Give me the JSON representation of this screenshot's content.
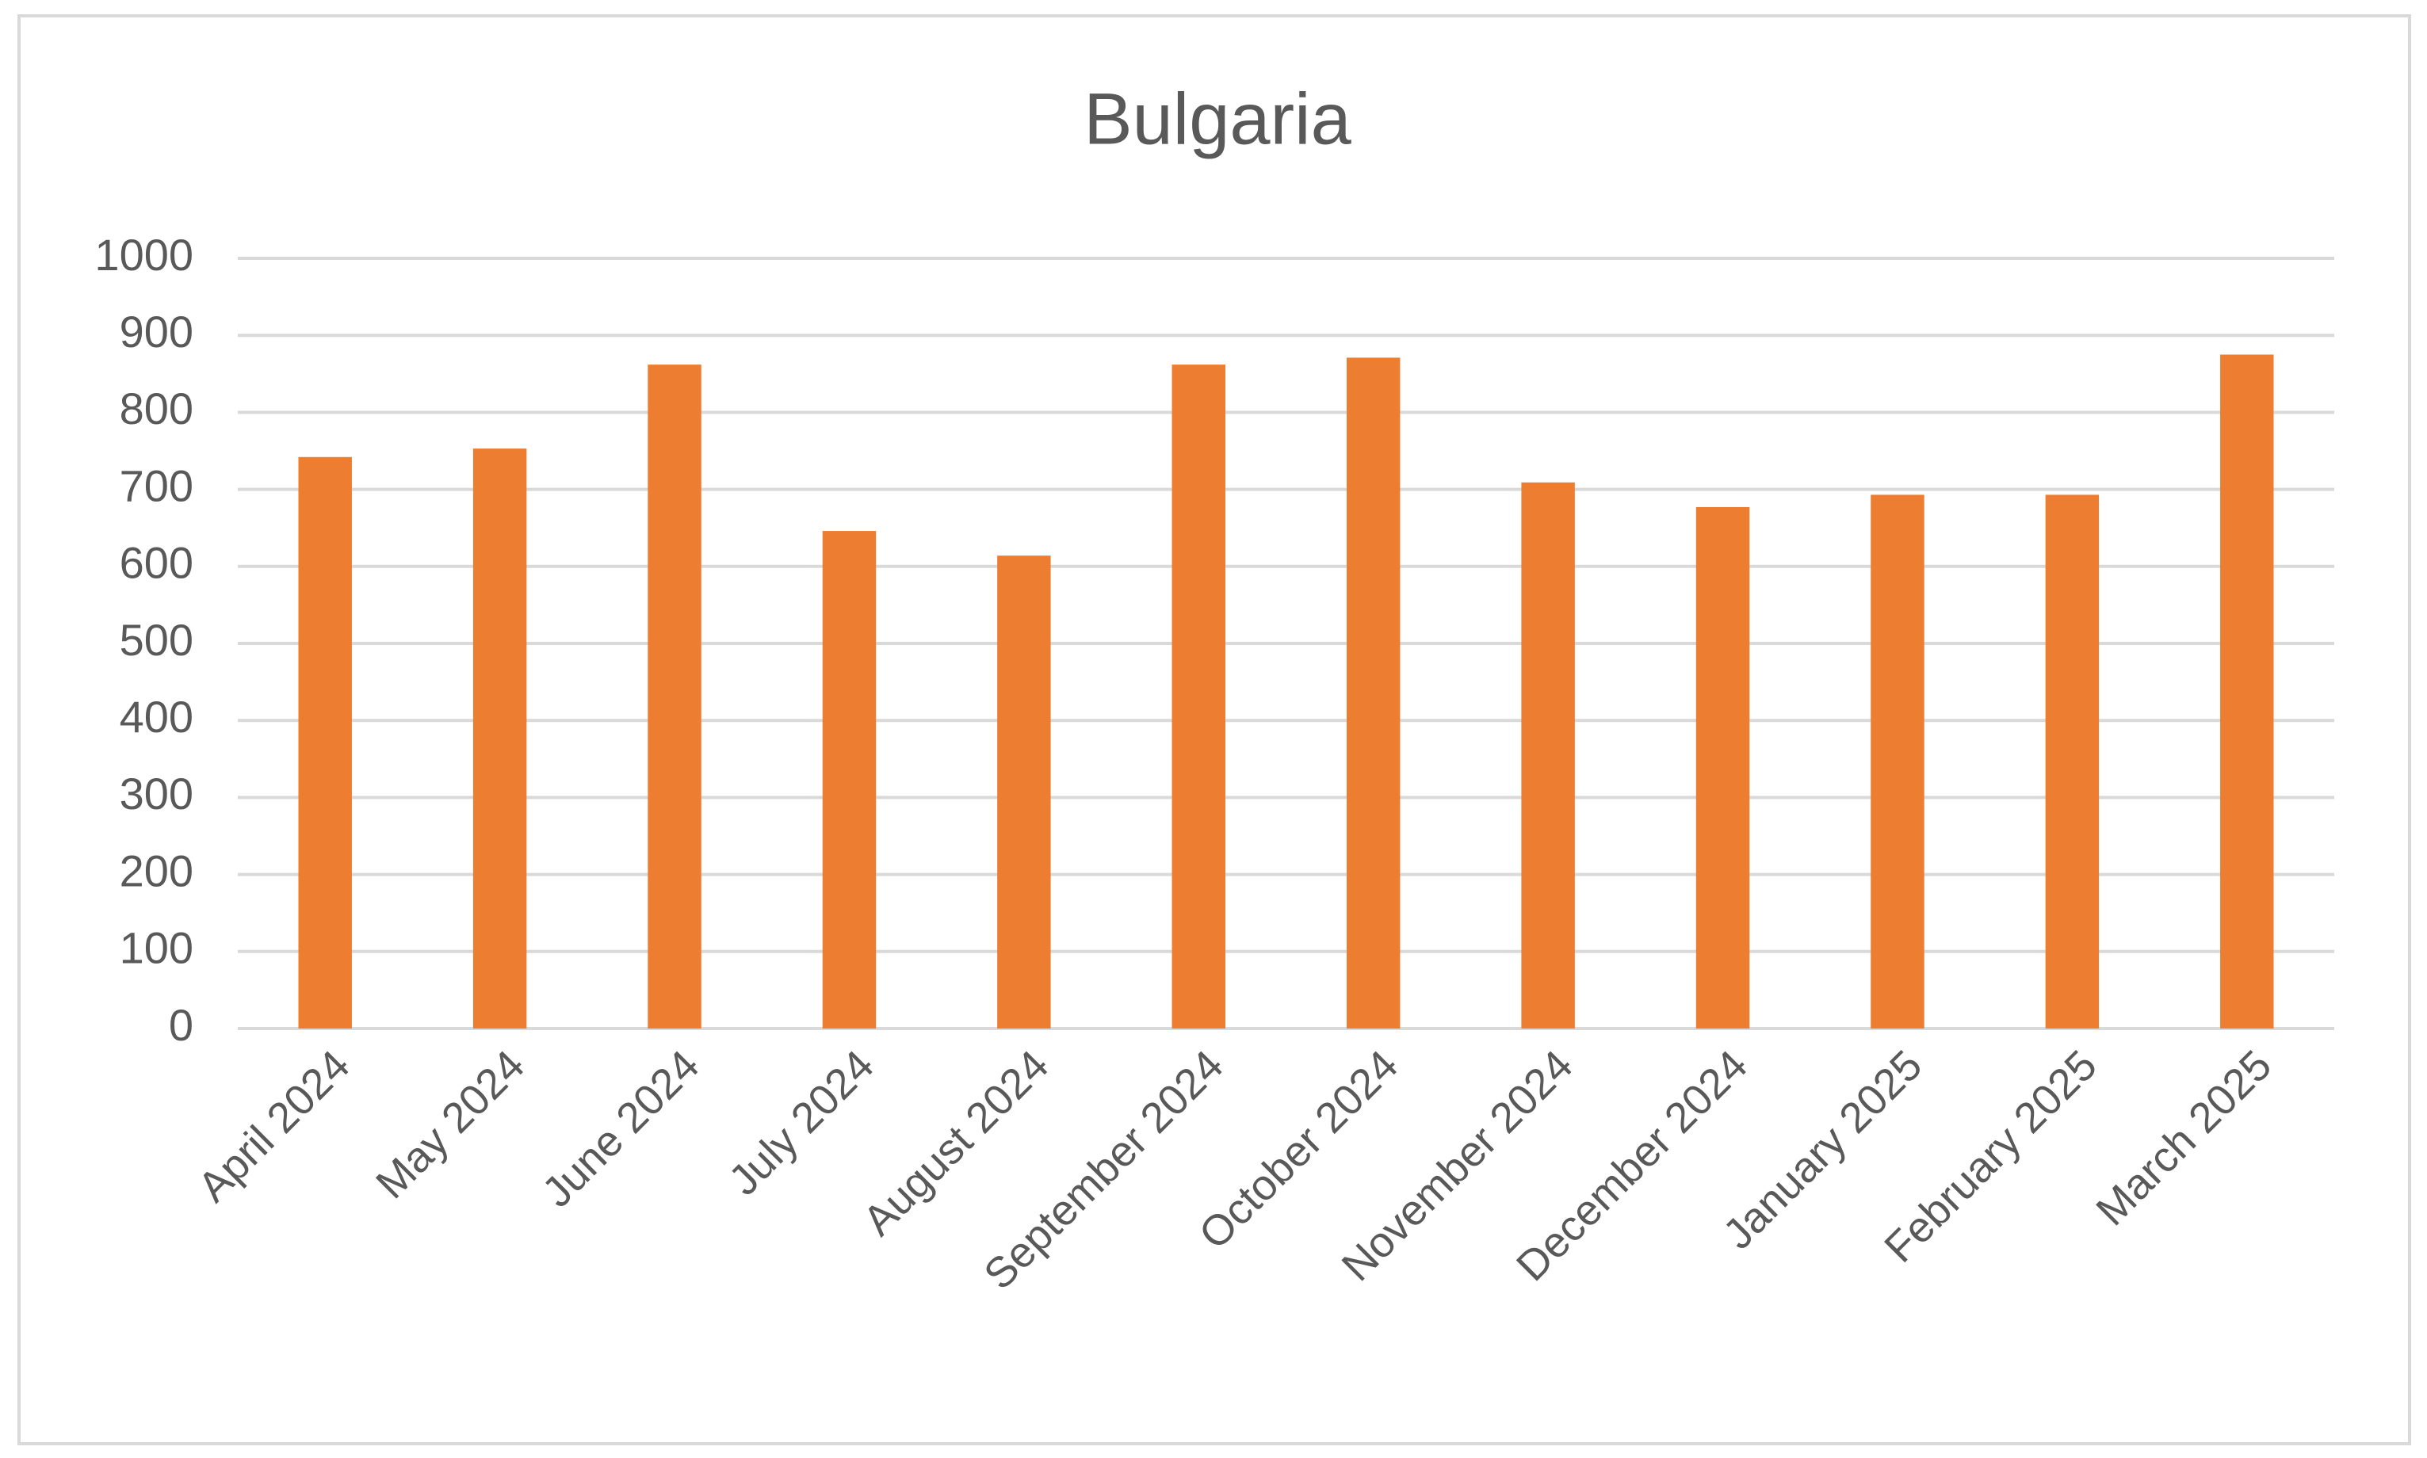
{
  "chart_data": {
    "type": "bar",
    "title": "Bulgaria",
    "categories": [
      "April 2024",
      "May 2024",
      "June 2024",
      "July 2024",
      "August 2024",
      "September 2024",
      "October 2024",
      "November 2024",
      "December 2024",
      "January 2025",
      "February 2025",
      "March 2025"
    ],
    "values": [
      742,
      753,
      862,
      646,
      614,
      862,
      871,
      709,
      677,
      693,
      693,
      875
    ],
    "color": "#ed7d31",
    "ylim": [
      0,
      1000
    ],
    "yticks": [
      0,
      100,
      200,
      300,
      400,
      500,
      600,
      700,
      800,
      900,
      1000
    ],
    "grid": true
  }
}
